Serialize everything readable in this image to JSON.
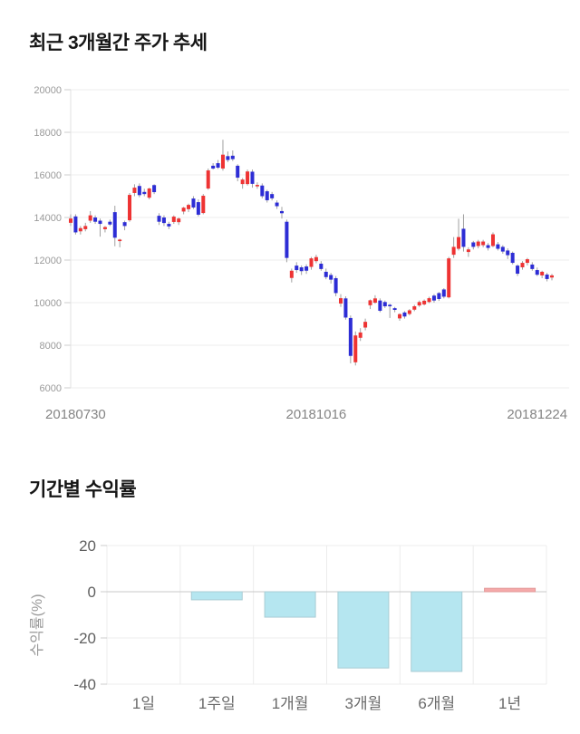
{
  "chart_data": [
    {
      "type": "candlestick",
      "title": "최근 3개월간 주가 추세",
      "y_ticks": [
        20000,
        18000,
        16000,
        14000,
        12000,
        10000,
        8000,
        6000
      ],
      "ylim": [
        6000,
        20000
      ],
      "x_tick_labels": [
        "20180730",
        "20181016",
        "20181224"
      ],
      "x_tick_indices": [
        1,
        50,
        95
      ],
      "grid": true,
      "legend": "none",
      "colors": {
        "bullish": "#ee3333",
        "bearish": "#2d2dd5",
        "wick": "#a0a0a0",
        "grid": "#ededed",
        "axis_line": "#e2e2e2",
        "tick_mark": "#cccccc",
        "y_tick_text": "#9a9a9a",
        "x_tick_text": "#858585"
      },
      "candles_ohlc": [
        [
          13750,
          14150,
          13600,
          13950
        ],
        [
          14050,
          14150,
          13200,
          13300
        ],
        [
          13350,
          13600,
          13200,
          13500
        ],
        [
          13450,
          13750,
          13350,
          13600
        ],
        [
          13850,
          14300,
          13750,
          14100
        ],
        [
          14000,
          14100,
          13700,
          13800
        ],
        [
          13850,
          13950,
          13100,
          13700
        ],
        [
          13450,
          13600,
          13300,
          13550
        ],
        [
          13800,
          13900,
          13600,
          13670
        ],
        [
          14250,
          14550,
          12650,
          13050
        ],
        [
          12890,
          13000,
          12600,
          12960
        ],
        [
          13780,
          13850,
          13400,
          13600
        ],
        [
          13870,
          15150,
          13800,
          15060
        ],
        [
          15150,
          15560,
          15000,
          15400
        ],
        [
          15480,
          15600,
          14950,
          15050
        ],
        [
          15200,
          15350,
          15000,
          15100
        ],
        [
          14930,
          15400,
          14850,
          15360
        ],
        [
          15520,
          15560,
          15100,
          15190
        ],
        [
          14080,
          14200,
          13650,
          13800
        ],
        [
          14000,
          14100,
          13600,
          13740
        ],
        [
          13700,
          13800,
          13450,
          13580
        ],
        [
          13790,
          14100,
          13700,
          14040
        ],
        [
          13780,
          14000,
          13650,
          13950
        ],
        [
          14280,
          14500,
          14150,
          14460
        ],
        [
          14390,
          14650,
          14250,
          14590
        ],
        [
          14890,
          15000,
          14400,
          14470
        ],
        [
          14720,
          14850,
          14050,
          14130
        ],
        [
          14210,
          15100,
          14150,
          15020
        ],
        [
          15360,
          16300,
          15300,
          16210
        ],
        [
          16430,
          16550,
          16250,
          16300
        ],
        [
          16550,
          16700,
          16280,
          16340
        ],
        [
          16300,
          17650,
          16200,
          16950
        ],
        [
          16880,
          17100,
          16600,
          16700
        ],
        [
          16900,
          17150,
          16650,
          16740
        ],
        [
          16430,
          16500,
          15700,
          15870
        ],
        [
          15570,
          15850,
          15350,
          15780
        ],
        [
          15570,
          16250,
          15500,
          16160
        ],
        [
          16150,
          16250,
          15400,
          15580
        ],
        [
          15480,
          15650,
          15350,
          15530
        ],
        [
          15500,
          15600,
          14900,
          15000
        ],
        [
          15230,
          15300,
          14700,
          14810
        ],
        [
          15100,
          15200,
          14800,
          14900
        ],
        [
          14700,
          14800,
          14400,
          14530
        ],
        [
          14300,
          14500,
          13950,
          14200
        ],
        [
          13800,
          13900,
          11900,
          12100
        ],
        [
          11160,
          11600,
          10950,
          11500
        ],
        [
          11740,
          11900,
          11400,
          11530
        ],
        [
          11660,
          11750,
          11300,
          11480
        ],
        [
          11700,
          11800,
          11350,
          11500
        ],
        [
          11680,
          12150,
          11550,
          12080
        ],
        [
          11950,
          12250,
          11850,
          12140
        ],
        [
          11830,
          11950,
          11500,
          11580
        ],
        [
          11450,
          11600,
          11100,
          11200
        ],
        [
          11300,
          11400,
          10900,
          11080
        ],
        [
          11150,
          11250,
          10300,
          10450
        ],
        [
          9960,
          10400,
          9800,
          10210
        ],
        [
          10200,
          10300,
          9200,
          9300
        ],
        [
          9280,
          9400,
          7150,
          7500
        ],
        [
          7200,
          8650,
          7050,
          8460
        ],
        [
          8350,
          8800,
          8200,
          8600
        ],
        [
          8830,
          9250,
          8700,
          9100
        ],
        [
          9880,
          10150,
          9700,
          10110
        ],
        [
          10000,
          10350,
          9950,
          10200
        ],
        [
          10100,
          10200,
          9550,
          9620
        ],
        [
          10030,
          10100,
          9750,
          9830
        ],
        [
          9900,
          9950,
          9280,
          9830
        ],
        [
          9740,
          9800,
          9550,
          9660
        ],
        [
          9260,
          9500,
          9150,
          9460
        ],
        [
          9540,
          9600,
          9250,
          9350
        ],
        [
          9470,
          9700,
          9400,
          9640
        ],
        [
          9670,
          9900,
          9600,
          9830
        ],
        [
          9870,
          10100,
          9800,
          10030
        ],
        [
          9920,
          10150,
          9870,
          10090
        ],
        [
          10030,
          10280,
          9980,
          10210
        ],
        [
          10330,
          10400,
          10000,
          10100
        ],
        [
          10450,
          10500,
          10080,
          10170
        ],
        [
          10620,
          10680,
          10200,
          10280
        ],
        [
          10250,
          12150,
          10200,
          12080
        ],
        [
          12250,
          13080,
          12100,
          12620
        ],
        [
          12530,
          13940,
          12450,
          13080
        ],
        [
          13470,
          14150,
          12400,
          12620
        ],
        [
          12380,
          12600,
          12150,
          12500
        ],
        [
          12830,
          12900,
          12500,
          12620
        ],
        [
          12660,
          12950,
          12550,
          12870
        ],
        [
          12700,
          12950,
          12600,
          12870
        ],
        [
          12700,
          12800,
          12450,
          12570
        ],
        [
          12660,
          13300,
          12600,
          13210
        ],
        [
          12740,
          12850,
          12450,
          12530
        ],
        [
          12620,
          12700,
          12300,
          12400
        ],
        [
          12450,
          12550,
          12050,
          12230
        ],
        [
          12340,
          12400,
          11800,
          11870
        ],
        [
          11740,
          11800,
          11250,
          11360
        ],
        [
          11660,
          11950,
          11550,
          11870
        ],
        [
          11870,
          12100,
          11750,
          12040
        ],
        [
          11790,
          11900,
          11500,
          11580
        ],
        [
          11530,
          11650,
          11250,
          11310
        ],
        [
          11280,
          11500,
          11150,
          11450
        ],
        [
          11320,
          11400,
          11000,
          11110
        ],
        [
          11180,
          11350,
          11050,
          11280
        ]
      ]
    },
    {
      "type": "bar",
      "title": "기간별 수익률",
      "ylabel": "수익률(%)",
      "categories": [
        "1일",
        "1주일",
        "1개월",
        "3개월",
        "6개월",
        "1년"
      ],
      "values": [
        0,
        -3.5,
        -11,
        -33,
        -34.5,
        1.5
      ],
      "y_ticks": [
        20,
        0,
        -20,
        -40
      ],
      "ylim": [
        -45,
        25
      ],
      "grid": true,
      "legend": "none",
      "colors": {
        "negative_fill": "#b5e6f0",
        "negative_stroke": "#a8ccd4",
        "positive_fill": "#f5a9a9",
        "positive_stroke": "#e29a9a",
        "grid": "#ececec",
        "zero_line": "#c9c9c9",
        "tick_mark": "#cccccc",
        "tick_text": "#5f5f5f",
        "category_text": "#6a6a6a",
        "ylabel_text": "#999999"
      }
    }
  ]
}
